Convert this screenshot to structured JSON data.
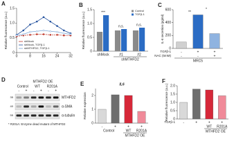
{
  "chart_data": [
    {
      "panel": "A",
      "type": "line",
      "y_label": "Relative fluorescence (a.u.)",
      "x": [
        0,
        4,
        8,
        12,
        16,
        20,
        24,
        28,
        32
      ],
      "xlim": [
        0,
        32
      ],
      "xticks": [
        0,
        8,
        16,
        24,
        32
      ],
      "ylim": [
        0,
        1.5
      ],
      "yticks": [
        0,
        0.5,
        {
          "value": 1,
          "label": "1.0"
        },
        1.5
      ],
      "legend": "bottom-left",
      "series": [
        {
          "name": "shMock",
          "color": "#c0392b",
          "values": [
            0.55,
            0.58,
            0.6,
            0.62,
            0.62,
            0.6,
            0.6,
            0.58,
            0.58
          ]
        },
        {
          "name": "shMock, TGFβ-1",
          "color": "#1f4e9c",
          "values": [
            0.6,
            0.75,
            0.95,
            1.05,
            1.2,
            1.05,
            0.9,
            0.75,
            0.65
          ]
        },
        {
          "name": "shMTHFD2, TGFβ-1",
          "color": "#7aa6d6",
          "values": [
            0.58,
            0.62,
            0.7,
            0.72,
            0.75,
            0.72,
            0.7,
            0.65,
            0.62
          ]
        }
      ]
    },
    {
      "panel": "B",
      "type": "bar",
      "y_label": "Relative fluorescence (a.u.)",
      "categories": [
        "shMock",
        "#1",
        "#2"
      ],
      "group_label": "shMTHFD2",
      "ylim": [
        0,
        1.5
      ],
      "yticks": [
        0,
        0.5,
        {
          "value": 1,
          "label": "1.0"
        },
        1.5
      ],
      "legend": "top-right",
      "annotations": [
        "***",
        "n.s.",
        "n.s."
      ],
      "series": [
        {
          "name": "Control",
          "color": "#8a8a8a",
          "values": [
            0.7,
            0.75,
            0.75
          ]
        },
        {
          "name": "TGFβ-1",
          "color": "#2b6cc4",
          "values": [
            1.3,
            0.8,
            0.85
          ]
        }
      ]
    },
    {
      "panel": "C",
      "type": "bar",
      "y_label": "IL-6 secretion (pg/ml)",
      "values": [
        100,
        520,
        230
      ],
      "colors": [
        "#d0d0d0",
        "#2b6cc4",
        "#8fb3e0"
      ],
      "ylim": [
        0,
        600
      ],
      "yticks": [
        0,
        200,
        400,
        600
      ],
      "annotations": [
        "**",
        "*"
      ],
      "conditions": [
        {
          "label": "TGFβ-1",
          "signs": [
            "-",
            "+",
            "+"
          ]
        },
        {
          "label": "NAC (5mM)",
          "signs": [
            "-",
            "-",
            "+"
          ]
        }
      ],
      "group_label": "MRC5"
    },
    {
      "panel": "E",
      "type": "bar",
      "title": "IL6",
      "y_label": "Relative expression",
      "values": [
        1,
        2.05,
        2,
        0.85
      ],
      "colors": [
        "#d9d9d9",
        "#6e6e6e",
        "#d62839",
        "#f08a99"
      ],
      "ylim": [
        0,
        2.5
      ],
      "yticks": [
        0,
        1,
        2
      ],
      "conditions": [
        {
          "signs": [
            "-",
            "+",
            "+",
            "+"
          ]
        }
      ],
      "categories": [
        "Control",
        null,
        "WT",
        "R201A"
      ],
      "group_label": "MTHFD2 OE"
    },
    {
      "panel": "F",
      "type": "bar",
      "y_label": "Relative fluorescence (a.u.)",
      "values": [
        1,
        1.8,
        1.75,
        1.4
      ],
      "colors": [
        "#d9d9d9",
        "#6e6e6e",
        "#d62839",
        "#f08a99"
      ],
      "ylim": [
        0,
        2
      ],
      "yticks": [
        0,
        0.5,
        {
          "value": 1,
          "label": "1.0"
        },
        1.5,
        {
          "value": 2,
          "label": "2.0"
        }
      ],
      "conditions": [
        {
          "label": "TGFβ-1",
          "signs": [
            "-",
            "+",
            "+",
            "+"
          ]
        }
      ],
      "categories": [
        null,
        null,
        "WT",
        "R201A"
      ],
      "group_label": "MTHFD2 OE"
    }
  ],
  "blot": {
    "panel": "D",
    "header": "MTHFD2 OE",
    "lanes": [
      "Control",
      "WT",
      "R201A"
    ],
    "signs": [
      "-",
      "+",
      "-",
      "+",
      "-",
      "+"
    ],
    "rows": [
      "MTHFD2",
      "α-SMA",
      "α-tubulin"
    ],
    "markers": [
      "35",
      "40",
      "55"
    ],
    "footnote": "* R201A: Enzyme dead mutant of MTHFD2"
  }
}
